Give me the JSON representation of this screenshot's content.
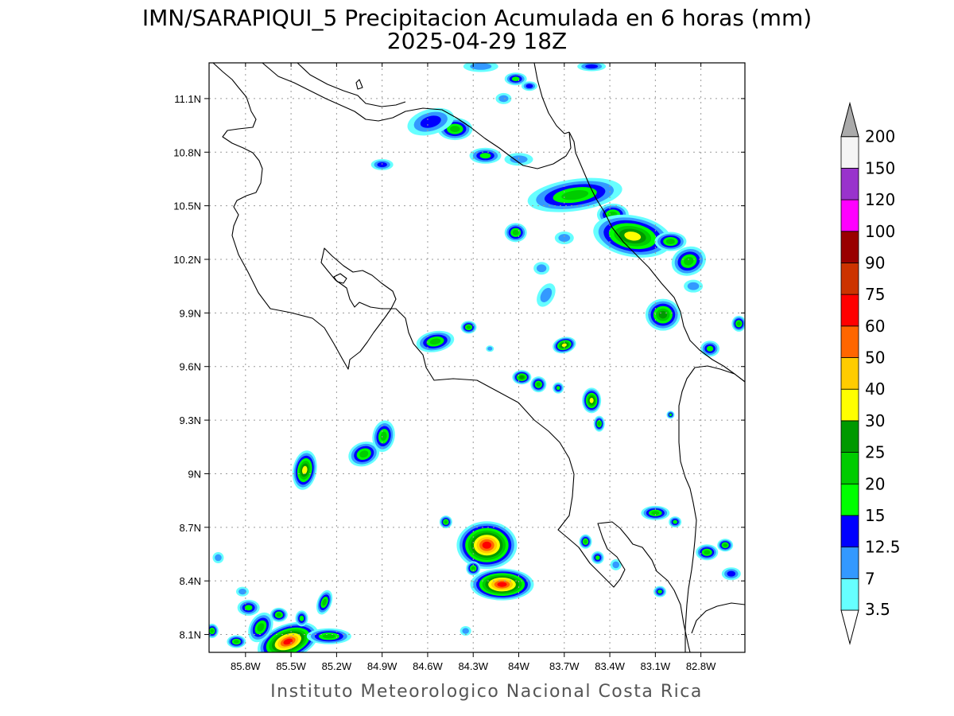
{
  "title": {
    "line1": "IMN/SARAPIQUI_5 Precipitacion Acumulada en 6 horas (mm)",
    "line2": "2025-04-29 18Z"
  },
  "footer": "Instituto Meteorologico Nacional Costa Rica",
  "map": {
    "lon_range": [
      -86.04,
      -82.51
    ],
    "lat_range": [
      8.0,
      11.3
    ],
    "x_ticks": [
      {
        "lon": -85.8,
        "label": "85.8W"
      },
      {
        "lon": -85.5,
        "label": "85.5W"
      },
      {
        "lon": -85.2,
        "label": "85.2W"
      },
      {
        "lon": -84.9,
        "label": "84.9W"
      },
      {
        "lon": -84.6,
        "label": "84.6W"
      },
      {
        "lon": -84.3,
        "label": "84.3W"
      },
      {
        "lon": -84.0,
        "label": "84W"
      },
      {
        "lon": -83.7,
        "label": "83.7W"
      },
      {
        "lon": -83.4,
        "label": "83.4W"
      },
      {
        "lon": -83.1,
        "label": "83.1W"
      },
      {
        "lon": -82.8,
        "label": "82.8W"
      }
    ],
    "y_ticks": [
      {
        "lat": 8.1,
        "label": "8.1N"
      },
      {
        "lat": 8.4,
        "label": "8.4N"
      },
      {
        "lat": 8.7,
        "label": "8.7N"
      },
      {
        "lat": 9.0,
        "label": "9N"
      },
      {
        "lat": 9.3,
        "label": "9.3N"
      },
      {
        "lat": 9.6,
        "label": "9.6N"
      },
      {
        "lat": 9.9,
        "label": "9.9N"
      },
      {
        "lat": 10.2,
        "label": "10.2N"
      },
      {
        "lat": 10.5,
        "label": "10.5N"
      },
      {
        "lat": 10.8,
        "label": "10.8N"
      },
      {
        "lat": 11.1,
        "label": "11.1N"
      }
    ],
    "grid": true
  },
  "colorbar": {
    "levels": [
      {
        "label": "3.5",
        "color": "#66ffff"
      },
      {
        "label": "7",
        "color": "#3399ff"
      },
      {
        "label": "12.5",
        "color": "#0000ff"
      },
      {
        "label": "15",
        "color": "#00ff00"
      },
      {
        "label": "20",
        "color": "#00cc00"
      },
      {
        "label": "25",
        "color": "#009900"
      },
      {
        "label": "30",
        "color": "#ffff00"
      },
      {
        "label": "40",
        "color": "#ffcc00"
      },
      {
        "label": "50",
        "color": "#ff6600"
      },
      {
        "label": "60",
        "color": "#ff0000"
      },
      {
        "label": "75",
        "color": "#cc3300"
      },
      {
        "label": "90",
        "color": "#990000"
      },
      {
        "label": "100",
        "color": "#ff00ff"
      },
      {
        "label": "120",
        "color": "#9933cc"
      },
      {
        "label": "150",
        "color": "#f5f5f5"
      },
      {
        "label": "200",
        "color": "#aaaaaa"
      }
    ]
  },
  "precip_cells": [
    {
      "lon": -85.52,
      "lat": 8.06,
      "rx": 40,
      "ry": 22,
      "level": 9,
      "rot": -20
    },
    {
      "lon": -85.25,
      "lat": 8.09,
      "rx": 28,
      "ry": 10,
      "level": 4,
      "rot": 0
    },
    {
      "lon": -85.7,
      "lat": 8.14,
      "rx": 14,
      "ry": 20,
      "level": 4,
      "rot": 30
    },
    {
      "lon": -85.78,
      "lat": 8.25,
      "rx": 14,
      "ry": 10,
      "level": 3,
      "rot": 0
    },
    {
      "lon": -85.58,
      "lat": 8.21,
      "rx": 11,
      "ry": 9,
      "level": 4,
      "rot": 0
    },
    {
      "lon": -85.43,
      "lat": 8.19,
      "rx": 8,
      "ry": 10,
      "level": 3,
      "rot": 0
    },
    {
      "lon": -85.86,
      "lat": 8.06,
      "rx": 12,
      "ry": 8,
      "level": 4,
      "rot": 0
    },
    {
      "lon": -86.02,
      "lat": 8.12,
      "rx": 8,
      "ry": 9,
      "level": 4,
      "rot": 0
    },
    {
      "lon": -85.28,
      "lat": 8.28,
      "rx": 9,
      "ry": 16,
      "level": 4,
      "rot": 20
    },
    {
      "lon": -85.82,
      "lat": 8.34,
      "rx": 8,
      "ry": 6,
      "level": 1,
      "rot": 0
    },
    {
      "lon": -85.98,
      "lat": 8.53,
      "rx": 7,
      "ry": 7,
      "level": 1,
      "rot": 0
    },
    {
      "lon": -84.35,
      "lat": 8.12,
      "rx": 7,
      "ry": 6,
      "level": 1,
      "rot": 0
    },
    {
      "lon": -85.41,
      "lat": 9.02,
      "rx": 15,
      "ry": 25,
      "level": 6,
      "rot": 10
    },
    {
      "lon": -85.02,
      "lat": 9.11,
      "rx": 20,
      "ry": 15,
      "level": 4,
      "rot": -20
    },
    {
      "lon": -84.89,
      "lat": 9.21,
      "rx": 14,
      "ry": 20,
      "level": 4,
      "rot": 10
    },
    {
      "lon": -84.21,
      "lat": 8.6,
      "rx": 38,
      "ry": 30,
      "level": 9,
      "rot": 0
    },
    {
      "lon": -84.11,
      "lat": 8.38,
      "rx": 40,
      "ry": 20,
      "level": 9,
      "rot": 0
    },
    {
      "lon": -84.48,
      "lat": 8.73,
      "rx": 8,
      "ry": 8,
      "level": 4,
      "rot": 0
    },
    {
      "lon": -84.3,
      "lat": 8.47,
      "rx": 9,
      "ry": 9,
      "level": 4,
      "rot": 0
    },
    {
      "lon": -84.55,
      "lat": 9.74,
      "rx": 24,
      "ry": 13,
      "level": 4,
      "rot": -10
    },
    {
      "lon": -84.33,
      "lat": 9.82,
      "rx": 10,
      "ry": 8,
      "level": 4,
      "rot": 0
    },
    {
      "lon": -83.98,
      "lat": 9.54,
      "rx": 12,
      "ry": 9,
      "level": 5,
      "rot": 0
    },
    {
      "lon": -83.87,
      "lat": 9.5,
      "rx": 10,
      "ry": 10,
      "level": 4,
      "rot": 0
    },
    {
      "lon": -83.74,
      "lat": 9.48,
      "rx": 7,
      "ry": 7,
      "level": 3,
      "rot": 0
    },
    {
      "lon": -83.7,
      "lat": 9.72,
      "rx": 15,
      "ry": 10,
      "level": 6,
      "rot": -15
    },
    {
      "lon": -83.52,
      "lat": 9.41,
      "rx": 12,
      "ry": 16,
      "level": 6,
      "rot": 0
    },
    {
      "lon": -83.47,
      "lat": 9.28,
      "rx": 7,
      "ry": 10,
      "level": 4,
      "rot": 0
    },
    {
      "lon": -83.82,
      "lat": 10.0,
      "rx": 10,
      "ry": 16,
      "level": 1,
      "rot": 30
    },
    {
      "lon": -83.63,
      "lat": 10.56,
      "rx": 60,
      "ry": 20,
      "level": 4,
      "rot": -8
    },
    {
      "lon": -83.38,
      "lat": 10.45,
      "rx": 20,
      "ry": 14,
      "level": 4,
      "rot": 0
    },
    {
      "lon": -83.25,
      "lat": 10.33,
      "rx": 50,
      "ry": 26,
      "level": 6,
      "rot": 10
    },
    {
      "lon": -83.0,
      "lat": 10.3,
      "rx": 20,
      "ry": 12,
      "level": 4,
      "rot": 0
    },
    {
      "lon": -82.88,
      "lat": 10.19,
      "rx": 22,
      "ry": 18,
      "level": 4,
      "rot": -20
    },
    {
      "lon": -83.05,
      "lat": 9.89,
      "rx": 22,
      "ry": 20,
      "level": 5,
      "rot": 0
    },
    {
      "lon": -82.74,
      "lat": 9.7,
      "rx": 12,
      "ry": 10,
      "level": 3,
      "rot": 0
    },
    {
      "lon": -82.55,
      "lat": 9.84,
      "rx": 9,
      "ry": 10,
      "level": 4,
      "rot": 0
    },
    {
      "lon": -82.85,
      "lat": 10.05,
      "rx": 12,
      "ry": 8,
      "level": 1,
      "rot": 0
    },
    {
      "lon": -84.02,
      "lat": 10.35,
      "rx": 14,
      "ry": 12,
      "level": 4,
      "rot": 0
    },
    {
      "lon": -83.85,
      "lat": 10.15,
      "rx": 10,
      "ry": 8,
      "level": 1,
      "rot": 0
    },
    {
      "lon": -83.7,
      "lat": 10.32,
      "rx": 12,
      "ry": 8,
      "level": 1,
      "rot": 0
    },
    {
      "lon": -84.42,
      "lat": 10.93,
      "rx": 22,
      "ry": 14,
      "level": 4,
      "rot": 0
    },
    {
      "lon": -84.58,
      "lat": 10.97,
      "rx": 30,
      "ry": 16,
      "level": 2,
      "rot": -15
    },
    {
      "lon": -84.22,
      "lat": 10.78,
      "rx": 20,
      "ry": 10,
      "level": 3,
      "rot": 0
    },
    {
      "lon": -84.0,
      "lat": 10.76,
      "rx": 18,
      "ry": 8,
      "level": 1,
      "rot": 0
    },
    {
      "lon": -84.9,
      "lat": 10.73,
      "rx": 14,
      "ry": 7,
      "level": 2,
      "rot": 0
    },
    {
      "lon": -84.02,
      "lat": 11.21,
      "rx": 14,
      "ry": 8,
      "level": 3,
      "rot": 0
    },
    {
      "lon": -83.93,
      "lat": 11.17,
      "rx": 10,
      "ry": 6,
      "level": 2,
      "rot": 0
    },
    {
      "lon": -84.1,
      "lat": 11.1,
      "rx": 10,
      "ry": 7,
      "level": 1,
      "rot": 0
    },
    {
      "lon": -84.25,
      "lat": 11.28,
      "rx": 22,
      "ry": 7,
      "level": 1,
      "rot": 0
    },
    {
      "lon": -83.52,
      "lat": 11.28,
      "rx": 18,
      "ry": 6,
      "level": 2,
      "rot": 0
    },
    {
      "lon": -83.1,
      "lat": 8.78,
      "rx": 18,
      "ry": 9,
      "level": 4,
      "rot": 0
    },
    {
      "lon": -82.97,
      "lat": 8.73,
      "rx": 8,
      "ry": 7,
      "level": 3,
      "rot": 0
    },
    {
      "lon": -82.76,
      "lat": 8.56,
      "rx": 14,
      "ry": 10,
      "level": 4,
      "rot": 0
    },
    {
      "lon": -82.64,
      "lat": 8.6,
      "rx": 10,
      "ry": 8,
      "level": 4,
      "rot": 0
    },
    {
      "lon": -82.6,
      "lat": 8.44,
      "rx": 12,
      "ry": 8,
      "level": 2,
      "rot": 0
    },
    {
      "lon": -83.07,
      "lat": 8.34,
      "rx": 8,
      "ry": 7,
      "level": 3,
      "rot": 0
    },
    {
      "lon": -83.56,
      "lat": 8.62,
      "rx": 8,
      "ry": 9,
      "level": 4,
      "rot": 0
    },
    {
      "lon": -83.48,
      "lat": 8.53,
      "rx": 8,
      "ry": 8,
      "level": 3,
      "rot": 0
    },
    {
      "lon": -83.36,
      "lat": 8.49,
      "rx": 7,
      "ry": 7,
      "level": 1,
      "rot": 0
    },
    {
      "lon": -83.0,
      "lat": 9.33,
      "rx": 5,
      "ry": 5,
      "level": 3,
      "rot": 0
    },
    {
      "lon": -84.19,
      "lat": 9.7,
      "rx": 5,
      "ry": 4,
      "level": 1,
      "rot": 0
    }
  ]
}
